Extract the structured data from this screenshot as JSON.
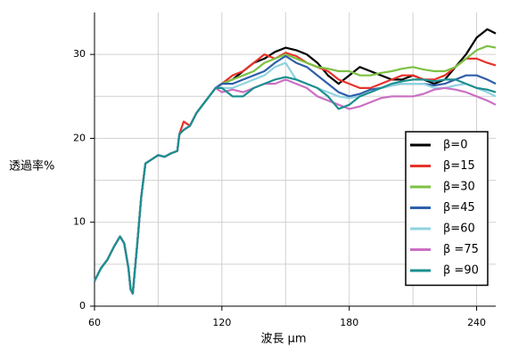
{
  "chart_data": {
    "type": "line",
    "xlabel": "波長 μm",
    "ylabel": "透過率%",
    "x": [
      60,
      63,
      66,
      69,
      72,
      74,
      76,
      77,
      78,
      80,
      82,
      84,
      87,
      90,
      93,
      96,
      99,
      100,
      102,
      105,
      108,
      111,
      114,
      117,
      120,
      125,
      130,
      135,
      140,
      145,
      150,
      155,
      160,
      165,
      170,
      175,
      180,
      185,
      190,
      195,
      200,
      205,
      210,
      215,
      220,
      225,
      230,
      235,
      240,
      245,
      249
    ],
    "xlim": [
      60,
      249
    ],
    "xticks": [
      60,
      120,
      180,
      240
    ],
    "xminor": [
      90,
      150,
      210
    ],
    "ylim": [
      0,
      35
    ],
    "yticks": [
      0,
      10,
      20,
      30
    ],
    "yminor": [
      5,
      15,
      25
    ],
    "grid": true,
    "legend": "right",
    "series": [
      {
        "name": "β=0",
        "color": "#000000",
        "values": [
          3,
          4.5,
          5.5,
          7,
          8.3,
          7.5,
          4.5,
          2,
          1.5,
          7,
          13,
          17,
          17.5,
          18,
          17.8,
          18.2,
          18.5,
          20.5,
          21,
          21.5,
          23,
          24,
          25,
          26,
          26.5,
          27,
          28,
          29,
          29.5,
          30.3,
          30.8,
          30.5,
          30,
          29,
          27.5,
          26.5,
          27.5,
          28.5,
          28,
          27.5,
          27,
          27,
          27.5,
          27,
          26.5,
          27,
          28.5,
          30,
          32,
          33,
          32.5
        ]
      },
      {
        "name": "β=15",
        "color": "#e8322a",
        "values": [
          3,
          4.5,
          5.5,
          7,
          8.3,
          7.5,
          4.5,
          2,
          1.5,
          7,
          13,
          17,
          17.5,
          18,
          17.8,
          18.2,
          18.5,
          20.5,
          22,
          21.5,
          23,
          24,
          25,
          26,
          26.5,
          27.5,
          28,
          29,
          30,
          29.5,
          30.2,
          29.8,
          29,
          28.5,
          28,
          27,
          26.5,
          26,
          26,
          26.5,
          27,
          27.5,
          27.5,
          27,
          27,
          27.5,
          28.5,
          29.5,
          29.5,
          29,
          28.7
        ]
      },
      {
        "name": "β=30",
        "color": "#7cc142",
        "values": [
          3,
          4.5,
          5.5,
          7,
          8.3,
          7.5,
          4.5,
          2,
          1.5,
          7,
          13,
          17,
          17.5,
          18,
          17.8,
          18.2,
          18.5,
          20.5,
          21,
          21.5,
          23,
          24,
          25,
          26,
          26.5,
          27,
          27.5,
          28,
          29,
          29.5,
          30,
          29.5,
          29,
          28.5,
          28.3,
          28,
          28,
          27.5,
          27.5,
          27.8,
          28,
          28.3,
          28.5,
          28.2,
          28,
          28,
          28.5,
          29.5,
          30.5,
          31,
          30.8
        ]
      },
      {
        "name": "β=45",
        "color": "#2f5faa",
        "values": [
          3,
          4.5,
          5.5,
          7,
          8.3,
          7.5,
          4.5,
          2,
          1.5,
          7,
          13,
          17,
          17.5,
          18,
          17.8,
          18.2,
          18.5,
          20.5,
          21,
          21.5,
          23,
          24,
          25,
          26,
          26.5,
          26.5,
          27,
          27.5,
          28,
          29,
          29.8,
          29,
          28.5,
          27.5,
          26.5,
          25.5,
          25,
          25.3,
          25.8,
          26,
          26.3,
          26.5,
          26.5,
          26.5,
          26.3,
          26.5,
          27,
          27.5,
          27.5,
          27,
          26.5
        ]
      },
      {
        "name": "β=60",
        "color": "#8fd3e0",
        "values": [
          3,
          4.5,
          5.5,
          7,
          8.3,
          7.5,
          4.5,
          2,
          1.5,
          7,
          13,
          17,
          17.5,
          18,
          17.8,
          18.2,
          18.5,
          20.5,
          21,
          21.5,
          23,
          24,
          25,
          26,
          26,
          26,
          26.5,
          27,
          27.5,
          28.5,
          29,
          27,
          26.5,
          26,
          25.5,
          25,
          24.8,
          25,
          25.5,
          26,
          26.3,
          26.5,
          26.5,
          26.5,
          26,
          26,
          26.3,
          26.5,
          26,
          25.5,
          25
        ]
      },
      {
        "name": "β =75",
        "color": "#cc6fc4",
        "values": [
          3,
          4.5,
          5.5,
          7,
          8.3,
          7.5,
          4.5,
          2,
          1.5,
          7,
          13,
          17,
          17.5,
          18,
          17.8,
          18.2,
          18.5,
          20.5,
          21,
          21.5,
          23,
          24,
          25,
          26,
          25.5,
          25.8,
          25.5,
          26,
          26.5,
          26.5,
          27,
          26.5,
          26,
          25,
          24.5,
          24,
          23.5,
          23.8,
          24.3,
          24.8,
          25,
          25,
          25,
          25.3,
          25.8,
          26,
          25.8,
          25.5,
          25,
          24.5,
          24
        ]
      },
      {
        "name": "β =90",
        "color": "#1b8f8f",
        "values": [
          3,
          4.5,
          5.5,
          7,
          8.3,
          7.5,
          4.5,
          2,
          1.5,
          7,
          13,
          17,
          17.5,
          18,
          17.8,
          18.2,
          18.5,
          20.5,
          21,
          21.5,
          23,
          24,
          25,
          26,
          26,
          25,
          25,
          26,
          26.5,
          27,
          27.3,
          27,
          26.5,
          26,
          25,
          23.5,
          24,
          25,
          25.5,
          26,
          26.5,
          26.8,
          27,
          27,
          26.8,
          27,
          27,
          26.5,
          26,
          25.8,
          25.5
        ]
      }
    ]
  }
}
